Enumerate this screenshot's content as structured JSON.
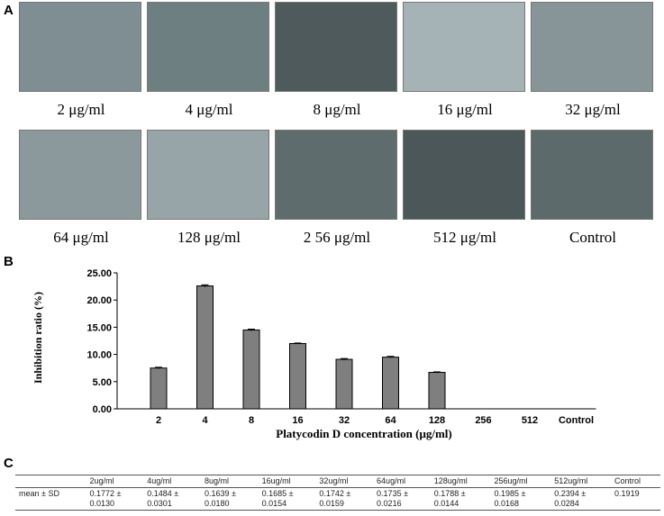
{
  "panel_labels": {
    "a": "A",
    "b": "B",
    "c": "C"
  },
  "images": [
    {
      "label": "2 μg/ml",
      "color": "#7e8e92"
    },
    {
      "label": "4 μg/ml",
      "color": "#6e7f82"
    },
    {
      "label": "8 μg/ml",
      "color": "#4e5a5c"
    },
    {
      "label": "16 μg/ml",
      "color": "#a6b3b6"
    },
    {
      "label": "32 μg/ml",
      "color": "#879598"
    },
    {
      "label": "64 μg/ml",
      "color": "#8b999c"
    },
    {
      "label": "128 μg/ml",
      "color": "#97a5a8"
    },
    {
      "label": "2 56 μg/ml",
      "color": "#5f6c6e"
    },
    {
      "label": "512 μg/ml",
      "color": "#4c5759"
    },
    {
      "label": "Control",
      "color": "#5d6a6c"
    }
  ],
  "chart_data": {
    "type": "bar",
    "categories": [
      "2",
      "4",
      "8",
      "16",
      "32",
      "64",
      "128",
      "256",
      "512",
      "Control"
    ],
    "values": [
      7.5,
      22.6,
      14.5,
      12.0,
      9.1,
      9.5,
      6.7,
      0,
      0,
      0
    ],
    "error": [
      0.15,
      0.2,
      0.15,
      0.1,
      0.15,
      0.15,
      0.1,
      0,
      0,
      0
    ],
    "yticks": [
      "0.00",
      "5.00",
      "10.00",
      "15.00",
      "20.00",
      "25.00"
    ],
    "ylim": [
      0,
      25
    ],
    "xlabel": "Platycodin D concentration (μg/ml)",
    "ylabel": "Inhibition ratio (%)",
    "bar_color": "#7f7f7f",
    "grid": false
  },
  "table": {
    "headers": [
      "",
      "2ug/ml",
      "4ug/ml",
      "8ug/ml",
      "16ug/ml",
      "32ug/ml",
      "64ug/ml",
      "128ug/ml",
      "256ug/ml",
      "512ug/ml",
      "Control"
    ],
    "row_label": "mean ± SD",
    "means": [
      "0.1772 ±",
      "0.1484 ±",
      "0.1639 ±",
      "0.1685 ±",
      "0.1742 ±",
      "0.1735 ±",
      "0.1788 ±",
      "0.1985 ±",
      "0.2394 ±",
      "0.1919"
    ],
    "sds": [
      "0.0130",
      "0.0301",
      "0.0180",
      "0.0154",
      "0.0159",
      "0.0216",
      "0.0144",
      "0.0168",
      "0.0284",
      ""
    ]
  }
}
